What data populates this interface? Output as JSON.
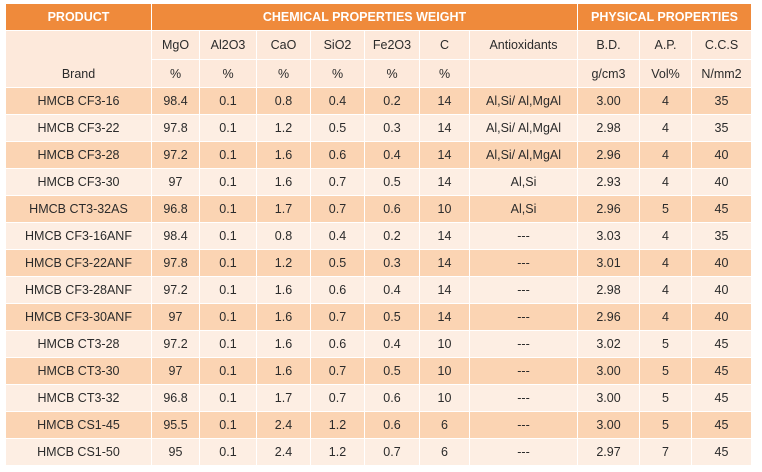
{
  "header": {
    "product": "PRODUCT",
    "chemical": "CHEMICAL PROPERTIES WEIGHT",
    "physical": "PHYSICAL PROPERTIES"
  },
  "brand_label": "Brand",
  "columns": [
    {
      "name": "MgO",
      "unit": "%"
    },
    {
      "name": "Al2O3",
      "unit": "%"
    },
    {
      "name": "CaO",
      "unit": "%"
    },
    {
      "name": "SiO2",
      "unit": "%"
    },
    {
      "name": "Fe2O3",
      "unit": "%"
    },
    {
      "name": "C",
      "unit": "%"
    },
    {
      "name": "Antioxidants"
    },
    {
      "name": "B.D.",
      "unit": "g/cm3"
    },
    {
      "name": "A.P.",
      "unit": "Vol%"
    },
    {
      "name": "C.C.S",
      "unit": "N/mm2"
    }
  ],
  "rows": [
    [
      "HMCB CF3-16",
      "98.4",
      "0.1",
      "0.8",
      "0.4",
      "0.2",
      "14",
      "Al,Si/ Al,MgAl",
      "3.00",
      "4",
      "35"
    ],
    [
      "HMCB CF3-22",
      "97.8",
      "0.1",
      "1.2",
      "0.5",
      "0.3",
      "14",
      "Al,Si/ Al,MgAl",
      "2.98",
      "4",
      "35"
    ],
    [
      "HMCB CF3-28",
      "97.2",
      "0.1",
      "1.6",
      "0.6",
      "0.4",
      "14",
      "Al,Si/ Al,MgAl",
      "2.96",
      "4",
      "40"
    ],
    [
      "HMCB CF3-30",
      "97",
      "0.1",
      "1.6",
      "0.7",
      "0.5",
      "14",
      "Al,Si",
      "2.93",
      "4",
      "40"
    ],
    [
      "HMCB CT3-32AS",
      "96.8",
      "0.1",
      "1.7",
      "0.7",
      "0.6",
      "10",
      "Al,Si",
      "2.96",
      "5",
      "45"
    ],
    [
      "HMCB CF3-16ANF",
      "98.4",
      "0.1",
      "0.8",
      "0.4",
      "0.2",
      "14",
      "---",
      "3.03",
      "4",
      "35"
    ],
    [
      "HMCB CF3-22ANF",
      "97.8",
      "0.1",
      "1.2",
      "0.5",
      "0.3",
      "14",
      "---",
      "3.01",
      "4",
      "40"
    ],
    [
      "HMCB CF3-28ANF",
      "97.2",
      "0.1",
      "1.6",
      "0.6",
      "0.4",
      "14",
      "---",
      "2.98",
      "4",
      "40"
    ],
    [
      "HMCB CF3-30ANF",
      "97",
      "0.1",
      "1.6",
      "0.7",
      "0.5",
      "14",
      "---",
      "2.96",
      "4",
      "40"
    ],
    [
      "HMCB CT3-28",
      "97.2",
      "0.1",
      "1.6",
      "0.6",
      "0.4",
      "10",
      "---",
      "3.02",
      "5",
      "45"
    ],
    [
      "HMCB CT3-30",
      "97",
      "0.1",
      "1.6",
      "0.7",
      "0.5",
      "10",
      "---",
      "3.00",
      "5",
      "45"
    ],
    [
      "HMCB CT3-32",
      "96.8",
      "0.1",
      "1.7",
      "0.7",
      "0.6",
      "10",
      "---",
      "3.00",
      "5",
      "45"
    ],
    [
      "HMCB CS1-45",
      "95.5",
      "0.1",
      "2.4",
      "1.2",
      "0.6",
      "6",
      "---",
      "3.00",
      "5",
      "45"
    ],
    [
      "HMCB CS1-50",
      "95",
      "0.1",
      "2.4",
      "1.2",
      "0.7",
      "6",
      "---",
      "2.97",
      "7",
      "45"
    ]
  ]
}
